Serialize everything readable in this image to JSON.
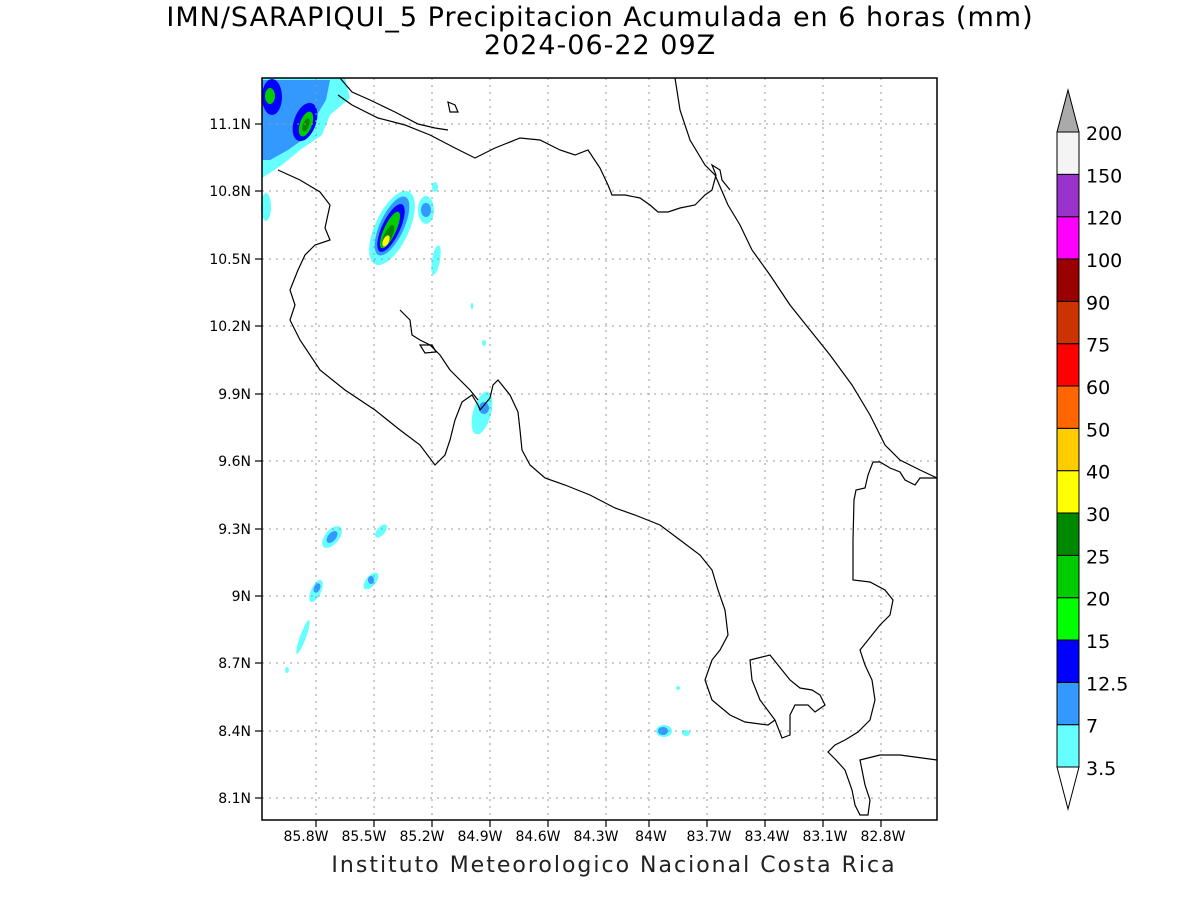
{
  "title": {
    "line1": "IMN/SARAPIQUI_5 Precipitacion Acumulada en 6 horas (mm)",
    "line2": "2024-06-22 09Z"
  },
  "footer": "Instituto Meteorologico Nacional Costa Rica",
  "map": {
    "lon_labels": [
      "85.8W",
      "85.5W",
      "85.2W",
      "84.9W",
      "84.6W",
      "84.3W",
      "84W",
      "83.7W",
      "83.4W",
      "83.1W",
      "82.8W"
    ],
    "lat_labels": [
      "11.1N",
      "10.8N",
      "10.5N",
      "10.2N",
      "9.9N",
      "9.6N",
      "9.3N",
      "9N",
      "8.7N",
      "8.4N",
      "8.1N"
    ],
    "grid": "dotted"
  },
  "colorbar": {
    "levels": [
      {
        "label": "3.5",
        "color": "#66ffff"
      },
      {
        "label": "7",
        "color": "#3399ff"
      },
      {
        "label": "12.5",
        "color": "#0000ff"
      },
      {
        "label": "15",
        "color": "#00ff00"
      },
      {
        "label": "20",
        "color": "#00cc00"
      },
      {
        "label": "25",
        "color": "#008800"
      },
      {
        "label": "30",
        "color": "#ffff00"
      },
      {
        "label": "40",
        "color": "#ffcc00"
      },
      {
        "label": "50",
        "color": "#ff6600"
      },
      {
        "label": "60",
        "color": "#ff0000"
      },
      {
        "label": "75",
        "color": "#cc3300"
      },
      {
        "label": "90",
        "color": "#990000"
      },
      {
        "label": "100",
        "color": "#ff00ff"
      },
      {
        "label": "120",
        "color": "#9933cc"
      },
      {
        "label": "150",
        "color": "#f4f4f4"
      },
      {
        "label": "200",
        "color": "#aaaaaa"
      }
    ],
    "under_color": "#ffffff",
    "over_color": "#aaaaaa"
  }
}
